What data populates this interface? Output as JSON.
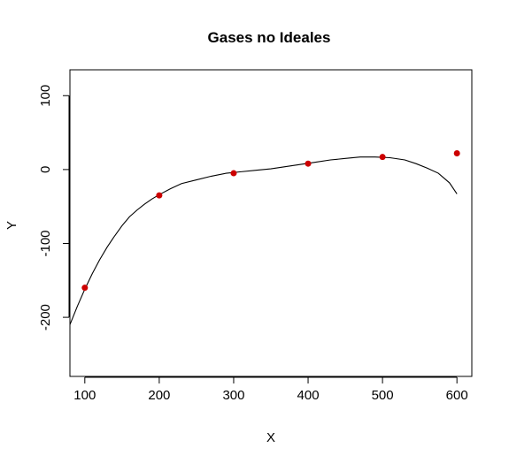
{
  "chart_data": {
    "type": "scatter",
    "title": "Gases no Ideales",
    "xlabel": "X",
    "ylabel": "Y",
    "xlim": [
      80,
      620
    ],
    "ylim": [
      -280,
      135
    ],
    "x_ticks": [
      100,
      200,
      300,
      400,
      500,
      600
    ],
    "y_ticks": [
      100,
      0,
      -100,
      -200
    ],
    "x_tick_labels": [
      "100",
      "200",
      "300",
      "400",
      "500",
      "600"
    ],
    "y_tick_labels": [
      "100",
      "0",
      "-100",
      "-200"
    ],
    "grid": false,
    "legend": "none",
    "point_color": "#cc0000",
    "line_color": "#000000",
    "points": [
      {
        "x": 100,
        "y": -160
      },
      {
        "x": 200,
        "y": -35
      },
      {
        "x": 300,
        "y": -5
      },
      {
        "x": 400,
        "y": 8
      },
      {
        "x": 500,
        "y": 17
      },
      {
        "x": 600,
        "y": 22
      }
    ],
    "fit_curve": [
      {
        "x": 80,
        "y": -210
      },
      {
        "x": 90,
        "y": -185
      },
      {
        "x": 100,
        "y": -162
      },
      {
        "x": 110,
        "y": -141
      },
      {
        "x": 120,
        "y": -122
      },
      {
        "x": 130,
        "y": -105
      },
      {
        "x": 140,
        "y": -90
      },
      {
        "x": 150,
        "y": -76
      },
      {
        "x": 160,
        "y": -64
      },
      {
        "x": 170,
        "y": -55
      },
      {
        "x": 180,
        "y": -47
      },
      {
        "x": 190,
        "y": -40
      },
      {
        "x": 200,
        "y": -34
      },
      {
        "x": 215,
        "y": -26
      },
      {
        "x": 230,
        "y": -19
      },
      {
        "x": 250,
        "y": -14
      },
      {
        "x": 270,
        "y": -9
      },
      {
        "x": 290,
        "y": -5
      },
      {
        "x": 310,
        "y": -3
      },
      {
        "x": 330,
        "y": -1
      },
      {
        "x": 350,
        "y": 1
      },
      {
        "x": 370,
        "y": 4
      },
      {
        "x": 390,
        "y": 7
      },
      {
        "x": 410,
        "y": 10
      },
      {
        "x": 430,
        "y": 13
      },
      {
        "x": 450,
        "y": 15
      },
      {
        "x": 470,
        "y": 17
      },
      {
        "x": 490,
        "y": 17
      },
      {
        "x": 510,
        "y": 16
      },
      {
        "x": 530,
        "y": 13
      },
      {
        "x": 545,
        "y": 8
      },
      {
        "x": 560,
        "y": 2
      },
      {
        "x": 575,
        "y": -5
      },
      {
        "x": 590,
        "y": -18
      },
      {
        "x": 600,
        "y": -33
      }
    ]
  }
}
